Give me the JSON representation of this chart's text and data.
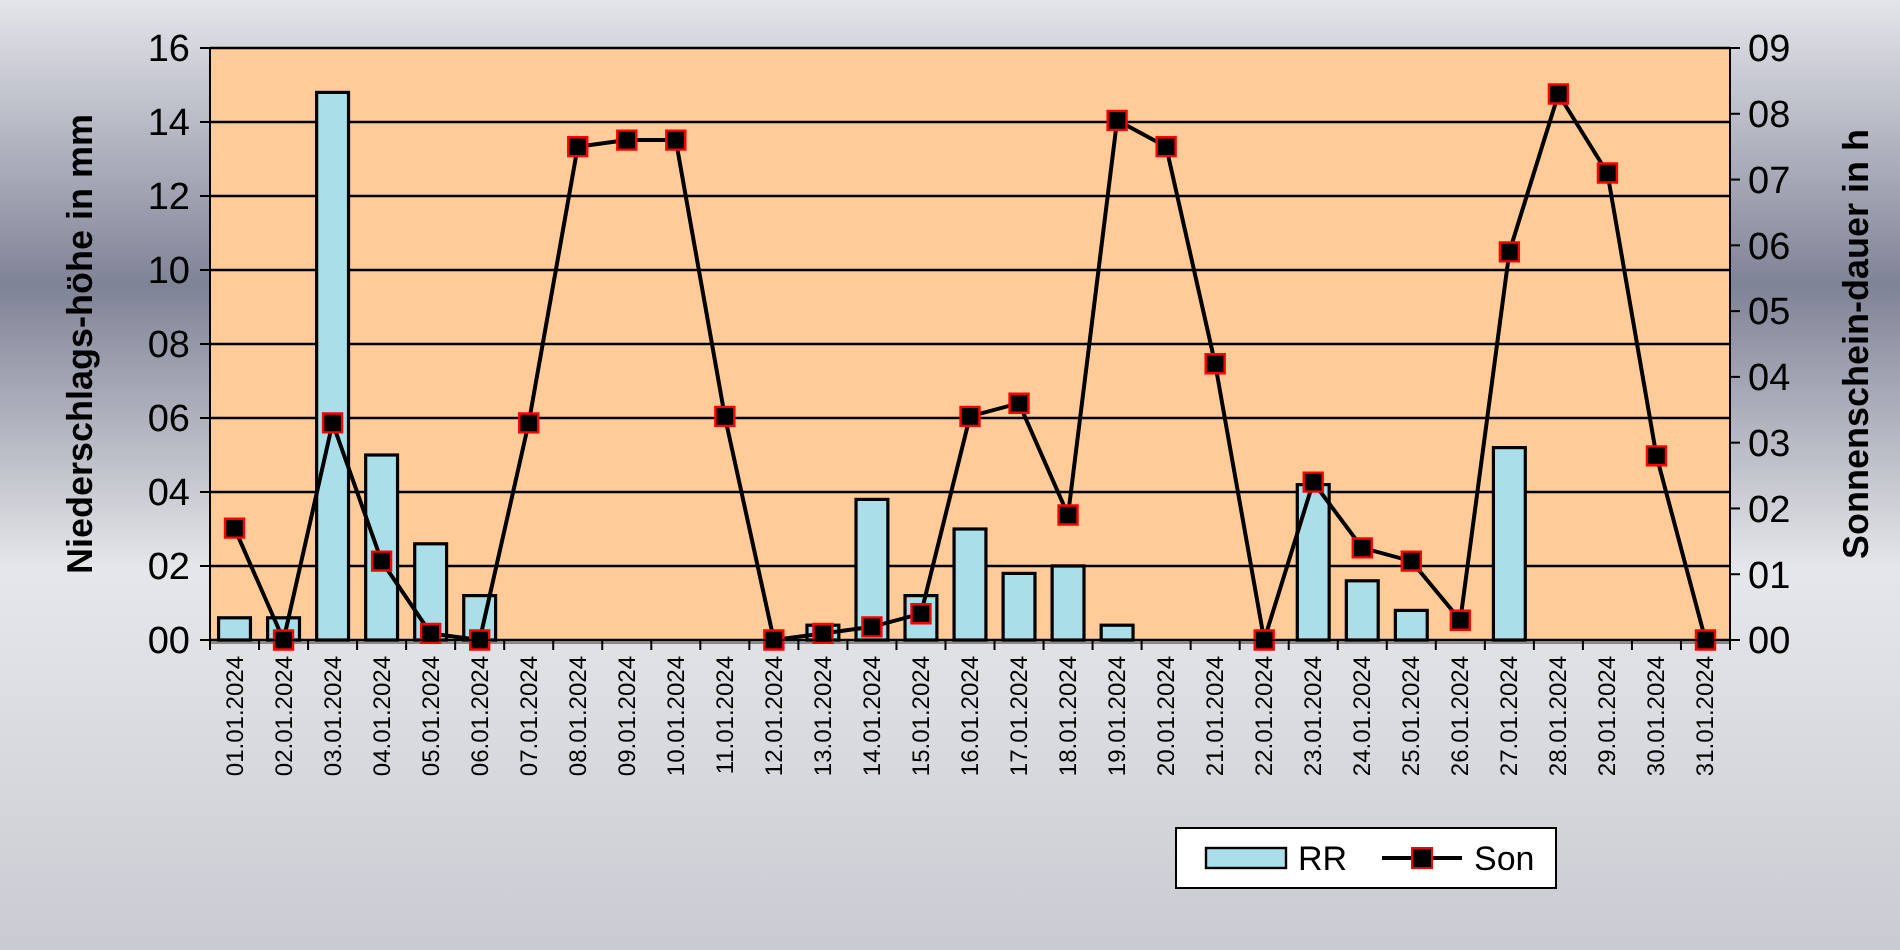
{
  "chart_data": {
    "type": "bar",
    "ylabel": "Niederschlags-höhe in mm",
    "y2label": "Sonnenschein-dauer in h",
    "categories": [
      "01.01.2024",
      "02.01.2024",
      "03.01.2024",
      "04.01.2024",
      "05.01.2024",
      "06.01.2024",
      "07.01.2024",
      "08.01.2024",
      "09.01.2024",
      "10.01.2024",
      "11.01.2024",
      "12.01.2024",
      "13.01.2024",
      "14.01.2024",
      "15.01.2024",
      "16.01.2024",
      "17.01.2024",
      "18.01.2024",
      "19.01.2024",
      "20.01.2024",
      "21.01.2024",
      "22.01.2024",
      "23.01.2024",
      "24.01.2024",
      "25.01.2024",
      "26.01.2024",
      "27.01.2024",
      "28.01.2024",
      "29.01.2024",
      "30.01.2024",
      "31.01.2024"
    ],
    "series": [
      {
        "name": "RR",
        "color": "#aadfea",
        "values": [
          0.6,
          0.6,
          14.8,
          5.0,
          2.6,
          1.2,
          0,
          0,
          0,
          0,
          0,
          0,
          0.4,
          3.8,
          1.2,
          3.0,
          1.8,
          2.0,
          0.4,
          0,
          0,
          0,
          4.2,
          1.6,
          0.8,
          0,
          5.2,
          0,
          0,
          0,
          0
        ]
      },
      {
        "name": "Son",
        "type": "line",
        "axis": "y2",
        "color": "#000000",
        "values": [
          1.7,
          0,
          3.3,
          1.2,
          0.1,
          0,
          3.3,
          7.5,
          7.6,
          7.6,
          3.4,
          0,
          0.1,
          0.2,
          0.4,
          3.4,
          3.6,
          1.9,
          7.9,
          7.5,
          4.2,
          0,
          2.4,
          1.4,
          1.2,
          0.3,
          5.9,
          8.3,
          7.1,
          2.8,
          0
        ]
      }
    ],
    "ylim": [
      0,
      16
    ],
    "yticks": [
      {
        "value": 0,
        "label": "00"
      },
      {
        "value": 2,
        "label": "02"
      },
      {
        "value": 4,
        "label": "04"
      },
      {
        "value": 6,
        "label": "06"
      },
      {
        "value": 8,
        "label": "08"
      },
      10,
      12,
      14,
      16
    ],
    "y2lim": [
      0,
      9
    ],
    "y2ticks": [
      {
        "value": 0,
        "label": "00"
      },
      {
        "value": 1,
        "label": "01"
      },
      {
        "value": 2,
        "label": "02"
      },
      {
        "value": 3,
        "label": "03"
      },
      {
        "value": 4,
        "label": "04"
      },
      {
        "value": 5,
        "label": "05"
      },
      {
        "value": 6,
        "label": "06"
      },
      {
        "value": 7,
        "label": "07"
      },
      {
        "value": 8,
        "label": "08"
      },
      {
        "value": 9,
        "label": "09"
      }
    ],
    "grid": "y",
    "legend": "bottom",
    "marker": "square",
    "line_style": "solid"
  }
}
